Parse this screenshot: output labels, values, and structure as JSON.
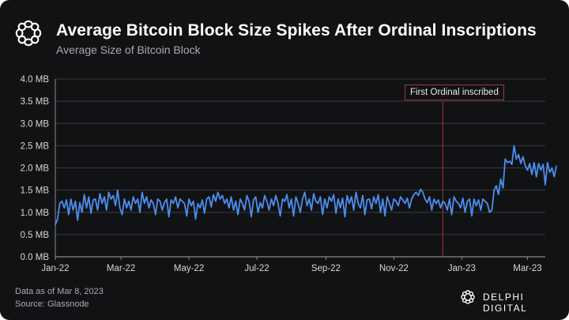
{
  "header": {
    "title": "Average Bitcoin Block Size Spikes After Ordinal Inscriptions",
    "subtitle": "Average Size of Bitcoin Block",
    "logo_icon": "delphi-logo-icon"
  },
  "footer": {
    "data_date": "Data as of Mar 8, 2023",
    "source": "Source: Glassnode",
    "brand": "DELPHI DIGITAL"
  },
  "colors": {
    "background": "#111214",
    "line": "#4a8ff0",
    "grid": "#3a3b3e",
    "annotation": "#9d3b3b"
  },
  "chart_data": {
    "type": "line",
    "title": "Average Bitcoin Block Size Spikes After Ordinal Inscriptions",
    "subtitle": "Average Size of Bitcoin Block",
    "xlabel": "",
    "ylabel": "",
    "y_unit": "MB",
    "ylim": [
      0,
      4.0
    ],
    "yticks": [
      "0.0 MB",
      "0.5 MB",
      "1.0 MB",
      "1.5 MB",
      "2.0 MB",
      "2.5 MB",
      "3.0 MB",
      "3.5 MB",
      "4.0 MB"
    ],
    "ytick_values": [
      0,
      0.5,
      1.0,
      1.5,
      2.0,
      2.5,
      3.0,
      3.5,
      4.0
    ],
    "x_start": "2022-01-01",
    "x_end": "2023-03-08",
    "xlim_days": [
      0,
      440
    ],
    "xticks": [
      {
        "label": "Jan-22",
        "day": 0
      },
      {
        "label": "Mar-22",
        "day": 59
      },
      {
        "label": "May-22",
        "day": 120
      },
      {
        "label": "Jul-22",
        "day": 181
      },
      {
        "label": "Sep-22",
        "day": 243
      },
      {
        "label": "Nov-22",
        "day": 304
      },
      {
        "label": "Jan-23",
        "day": 365
      },
      {
        "label": "Mar-23",
        "day": 424
      }
    ],
    "grid": true,
    "legend": "none",
    "annotation": {
      "label": "First Ordinal inscribed",
      "day": 348,
      "date": "2022-12-14"
    },
    "series": [
      {
        "name": "Average Block Size (MB)",
        "step_days": 2,
        "values": [
          0.72,
          0.85,
          1.2,
          1.25,
          1.1,
          1.28,
          0.95,
          1.3,
          1.05,
          1.25,
          0.82,
          1.22,
          1.0,
          1.4,
          1.1,
          1.35,
          0.98,
          1.28,
          1.3,
          1.05,
          1.42,
          1.2,
          1.35,
          1.05,
          1.45,
          1.3,
          1.38,
          1.15,
          1.5,
          1.1,
          0.95,
          1.3,
          1.1,
          1.25,
          1.05,
          1.35,
          1.2,
          1.3,
          1.0,
          1.45,
          1.2,
          1.35,
          1.1,
          1.28,
          1.2,
          0.95,
          1.3,
          1.25,
          1.05,
          1.22,
          1.3,
          0.9,
          1.28,
          1.2,
          1.35,
          1.1,
          1.3,
          1.25,
          1.2,
          0.92,
          1.3,
          1.15,
          1.25,
          0.85,
          1.2,
          1.1,
          1.28,
          0.98,
          1.3,
          1.35,
          1.12,
          1.4,
          1.25,
          1.45,
          1.3,
          1.38,
          1.2,
          1.3,
          1.1,
          1.35,
          1.05,
          1.25,
          0.95,
          1.3,
          1.2,
          1.05,
          1.38,
          1.25,
          0.9,
          1.28,
          1.35,
          1.0,
          1.22,
          1.1,
          1.38,
          1.25,
          1.05,
          1.3,
          1.15,
          1.38,
          1.2,
          0.92,
          1.3,
          1.25,
          1.4,
          1.1,
          1.3,
          0.92,
          1.35,
          1.2,
          1.0,
          1.3,
          1.45,
          1.15,
          1.3,
          1.05,
          1.42,
          1.25,
          1.2,
          1.35,
          0.95,
          1.3,
          1.1,
          1.35,
          1.25,
          1.4,
          0.98,
          1.3,
          1.1,
          1.32,
          0.9,
          1.38,
          1.2,
          1.35,
          1.05,
          1.45,
          1.2,
          1.1,
          1.38,
          0.95,
          1.28,
          1.3,
          1.08,
          1.35,
          1.2,
          1.4,
          1.0,
          1.3,
          0.92,
          1.35,
          1.2,
          1.05,
          1.3,
          1.25,
          1.15,
          1.35,
          1.28,
          1.2,
          1.32,
          1.1,
          1.3,
          1.4,
          1.45,
          1.38,
          1.52,
          1.45,
          1.3,
          1.22,
          1.35,
          1.05,
          1.3,
          1.2,
          1.28,
          1.1,
          1.25,
          1.2,
          1.05,
          1.3,
          0.95,
          1.35,
          1.25,
          1.2,
          1.1,
          1.32,
          1.0,
          1.25,
          1.3,
          0.92,
          1.3,
          1.15,
          1.28,
          1.05,
          1.3,
          1.25,
          1.2,
          1.0,
          1.05,
          1.5,
          1.6,
          1.4,
          1.75,
          1.55,
          2.2,
          2.12,
          2.15,
          2.08,
          2.5,
          2.2,
          2.3,
          2.1,
          2.25,
          2.05,
          1.95,
          2.1,
          1.85,
          2.12,
          1.8,
          2.1,
          1.95,
          2.08,
          1.62,
          2.12,
          1.9,
          2.0,
          1.8,
          2.05
        ]
      }
    ]
  }
}
